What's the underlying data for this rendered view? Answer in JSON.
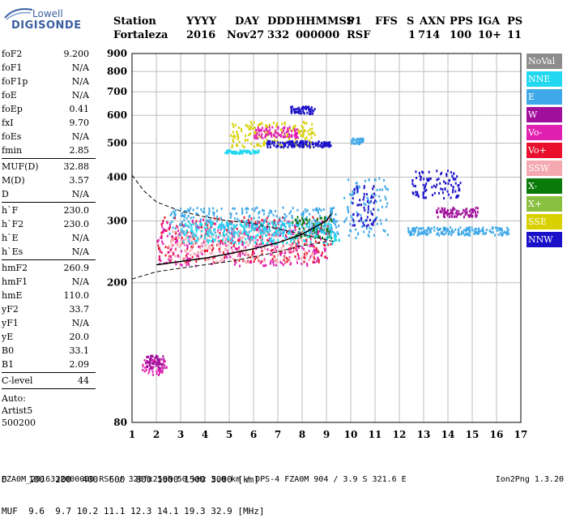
{
  "logo": {
    "line1": "Lowell",
    "line2": "DIGISONDE"
  },
  "header": {
    "labels": [
      "Station",
      "YYYY",
      "DAY",
      "DDD",
      "HHMMSS",
      "P1",
      "FFS",
      "S",
      "AXN",
      "PPS",
      "IGA",
      "PS"
    ],
    "values": [
      "Fortaleza",
      "2016",
      "Nov27",
      "332",
      "000000",
      "RSF",
      "",
      "1",
      "714",
      "100",
      "10+",
      "11"
    ]
  },
  "params": [
    {
      "k": "foF2",
      "v": "9.200"
    },
    {
      "k": "foF1",
      "v": "N/A"
    },
    {
      "k": "foF1p",
      "v": "N/A"
    },
    {
      "k": "foE",
      "v": "N/A"
    },
    {
      "k": "foEp",
      "v": "0.41"
    },
    {
      "k": "fxI",
      "v": "9.70"
    },
    {
      "k": "foEs",
      "v": "N/A"
    },
    {
      "k": "fmin",
      "v": "2.85"
    },
    {
      "sep": true
    },
    {
      "k": "MUF(D)",
      "v": "32.88"
    },
    {
      "k": "M(D)",
      "v": "3.57"
    },
    {
      "k": "D",
      "v": "N/A"
    },
    {
      "sep": true
    },
    {
      "k": "h`F",
      "v": "230.0"
    },
    {
      "k": "h`F2",
      "v": "230.0"
    },
    {
      "k": "h`E",
      "v": "N/A"
    },
    {
      "k": "h`Es",
      "v": "N/A"
    },
    {
      "sep": true
    },
    {
      "k": "hmF2",
      "v": "260.9"
    },
    {
      "k": "hmF1",
      "v": "N/A"
    },
    {
      "k": "hmE",
      "v": "110.0"
    },
    {
      "k": "yF2",
      "v": "33.7"
    },
    {
      "k": "yF1",
      "v": "N/A"
    },
    {
      "k": "yE",
      "v": "20.0"
    },
    {
      "k": "B0",
      "v": "33.1"
    },
    {
      "k": "B1",
      "v": "2.09"
    },
    {
      "sep": true
    },
    {
      "k": "C-level",
      "v": "44"
    },
    {
      "sep": true
    }
  ],
  "auto": {
    "line1": "Auto:",
    "line2": "Artist5",
    "line3": "500200"
  },
  "legend": [
    {
      "label": "NoVal",
      "color": "#8c8c8c"
    },
    {
      "label": "NNE",
      "color": "#22d8f0"
    },
    {
      "label": "E",
      "color": "#3ea8e8"
    },
    {
      "label": "W",
      "color": "#a0109c"
    },
    {
      "label": "Vo-",
      "color": "#e020b0"
    },
    {
      "label": "Vo+",
      "color": "#e8102c"
    },
    {
      "label": "SSW",
      "color": "#f4a8b0"
    },
    {
      "label": "X-",
      "color": "#0a7a0a"
    },
    {
      "label": "X+",
      "color": "#8ac040"
    },
    {
      "label": "SSE",
      "color": "#d8d000"
    },
    {
      "label": "NNW",
      "color": "#1a10c8"
    }
  ],
  "bottom": {
    "d_row": "D    100  200  400  600  800 1000 1500 3000 [km]",
    "muf_row": "MUF  9.6  9.7 10.2 11.1 12.3 14.1 19.3 32.9 [MHz]"
  },
  "footer": "FZA0M_2016332000000.RSF / 320fx256h 50 kHz 5.0 km / DPS-4 FZA0M 904 / 3.9 S 321.6 E",
  "version": "Ion2Png 1.3.20",
  "chart_data": {
    "type": "scatter",
    "title": "",
    "xlabel": "",
    "ylabel": "",
    "xlim": [
      1,
      17
    ],
    "ylim": [
      80,
      900
    ],
    "log_y": true,
    "grid": true,
    "legend_position": "right",
    "x_ticks": [
      1,
      2,
      3,
      4,
      5,
      6,
      7,
      8,
      9,
      10,
      11,
      12,
      13,
      14,
      15,
      16,
      17
    ],
    "y_ticks": [
      80,
      200,
      300,
      400,
      500,
      600,
      700,
      800,
      900
    ],
    "clusters": [
      {
        "series": "Vo-",
        "x": [
          1.4,
          2.4
        ],
        "y": [
          110,
          122
        ]
      },
      {
        "series": "W",
        "x": [
          1.5,
          2.3
        ],
        "y": [
          115,
          125
        ]
      },
      {
        "series": "Vo+",
        "x": [
          2.0,
          9.2
        ],
        "y": [
          230,
          310
        ]
      },
      {
        "series": "Vo-",
        "x": [
          2.0,
          9.0
        ],
        "y": [
          225,
          305
        ]
      },
      {
        "series": "X-",
        "x": [
          7.5,
          9.2
        ],
        "y": [
          270,
          310
        ]
      },
      {
        "series": "SSW",
        "x": [
          2.5,
          8.5
        ],
        "y": [
          230,
          290
        ]
      },
      {
        "series": "E",
        "x": [
          2.5,
          9.5
        ],
        "y": [
          275,
          330
        ]
      },
      {
        "series": "NNE",
        "x": [
          3.0,
          9.5
        ],
        "y": [
          260,
          300
        ]
      },
      {
        "series": "E",
        "x": [
          9.7,
          11.5
        ],
        "y": [
          270,
          400
        ]
      },
      {
        "series": "NNW",
        "x": [
          10.0,
          11.0
        ],
        "y": [
          290,
          380
        ]
      },
      {
        "series": "E",
        "x": [
          12.3,
          16.5
        ],
        "y": [
          275,
          290
        ]
      },
      {
        "series": "NNW",
        "x": [
          12.5,
          14.5
        ],
        "y": [
          350,
          420
        ]
      },
      {
        "series": "W",
        "x": [
          13.5,
          15.2
        ],
        "y": [
          310,
          330
        ]
      },
      {
        "series": "SSE",
        "x": [
          5.0,
          8.5
        ],
        "y": [
          490,
          580
        ]
      },
      {
        "series": "NNE",
        "x": [
          4.8,
          6.2
        ],
        "y": [
          470,
          480
        ]
      },
      {
        "series": "NNW",
        "x": [
          6.5,
          9.2
        ],
        "y": [
          490,
          510
        ]
      },
      {
        "series": "NNW",
        "x": [
          7.5,
          8.5
        ],
        "y": [
          610,
          640
        ]
      },
      {
        "series": "E",
        "x": [
          10.0,
          10.5
        ],
        "y": [
          500,
          520
        ]
      },
      {
        "series": "Vo-",
        "x": [
          6.0,
          7.8
        ],
        "y": [
          520,
          560
        ]
      }
    ],
    "profile_curve": {
      "x": [
        2.0,
        3.0,
        4.0,
        5.0,
        6.0,
        7.0,
        8.0,
        8.6,
        9.0,
        9.2
      ],
      "y": [
        225,
        230,
        235,
        242,
        250,
        260,
        275,
        290,
        300,
        315
      ]
    },
    "dashed_upper": {
      "x": [
        1.0,
        1.5,
        2.0,
        3.0,
        4.0,
        5.0,
        6.0,
        7.0,
        8.0,
        9.0,
        9.3
      ],
      "y": [
        405,
        365,
        340,
        320,
        308,
        300,
        295,
        285,
        275,
        265,
        262
      ]
    },
    "dashed_lower": {
      "x": [
        1.0,
        2.0,
        3.0,
        4.0,
        5.0,
        6.0,
        7.0,
        8.0,
        9.0
      ],
      "y": [
        205,
        215,
        220,
        225,
        230,
        237,
        245,
        255,
        262
      ]
    }
  }
}
